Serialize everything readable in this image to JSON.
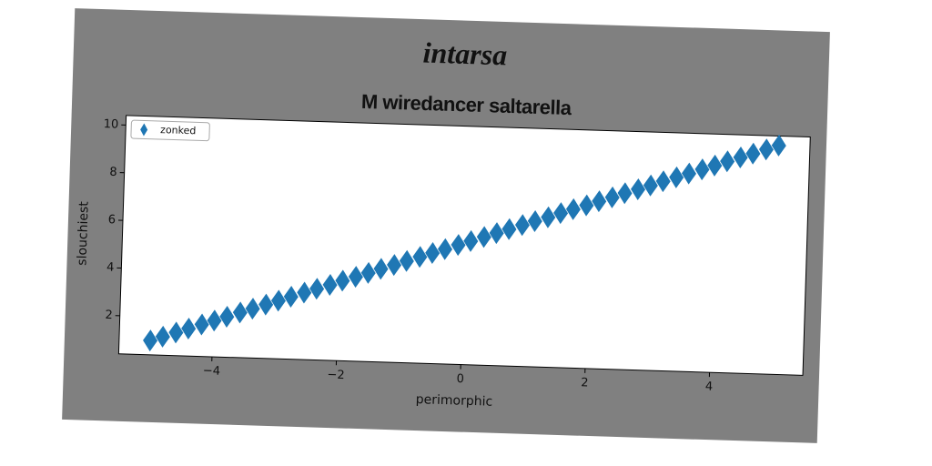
{
  "chart_data": {
    "type": "scatter",
    "title": "intarsa",
    "subtitle": "M wiredancer saltarella",
    "xlabel": "perimorphic",
    "ylabel": "slouchiest",
    "legend": "upper left",
    "marker": "diamond",
    "xlim": [
      -5.5,
      5.5
    ],
    "ylim": [
      0.4,
      10.4
    ],
    "xticks": [
      {
        "value": -4,
        "label": "−4"
      },
      {
        "value": -2,
        "label": "−2"
      },
      0,
      2,
      4
    ],
    "yticks": [
      2,
      4,
      6,
      8,
      10
    ],
    "series": [
      {
        "name": "zonked",
        "color": "#1f77b4",
        "x": [
          -5.0,
          -4.8,
          -4.59,
          -4.39,
          -4.18,
          -3.98,
          -3.78,
          -3.57,
          -3.37,
          -3.16,
          -2.96,
          -2.76,
          -2.55,
          -2.35,
          -2.14,
          -1.94,
          -1.73,
          -1.53,
          -1.33,
          -1.12,
          -0.92,
          -0.71,
          -0.51,
          -0.31,
          -0.1,
          0.1,
          0.31,
          0.51,
          0.71,
          0.92,
          1.12,
          1.33,
          1.53,
          1.73,
          1.94,
          2.14,
          2.35,
          2.55,
          2.76,
          2.96,
          3.16,
          3.37,
          3.57,
          3.78,
          3.98,
          4.18,
          4.39,
          4.59,
          4.8,
          5.0
        ],
        "values": [
          1.0,
          1.18,
          1.37,
          1.55,
          1.74,
          1.92,
          2.1,
          2.29,
          2.47,
          2.66,
          2.84,
          3.02,
          3.21,
          3.39,
          3.57,
          3.76,
          3.94,
          4.12,
          4.31,
          4.49,
          4.67,
          4.86,
          5.04,
          5.22,
          5.41,
          5.59,
          5.78,
          5.96,
          6.14,
          6.33,
          6.51,
          6.69,
          6.88,
          7.06,
          7.24,
          7.43,
          7.61,
          7.8,
          7.98,
          8.16,
          8.35,
          8.53,
          8.71,
          8.9,
          9.08,
          9.27,
          9.45,
          9.63,
          9.82,
          10.0
        ]
      }
    ]
  }
}
